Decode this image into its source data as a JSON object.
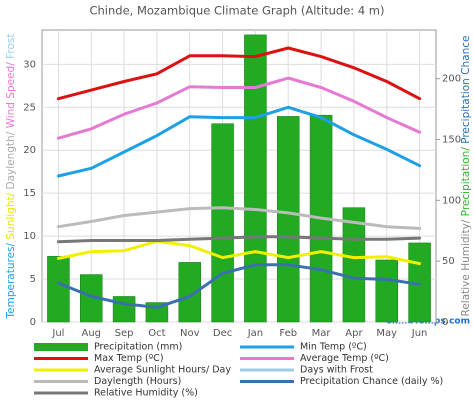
{
  "chart_data": {
    "type": "combo",
    "title": "Chinde, Mozambique Climate Graph (Altitude: 4 m)",
    "ylabel": [
      {
        "text": "Temperatures/ ",
        "color": "#1ea0e6"
      },
      {
        "text": "Sunlight/ ",
        "color": "#e6e600"
      },
      {
        "text": "Daylength/ ",
        "color": "#aaaaaa"
      },
      {
        "text": "Wind Speed/ ",
        "color": "#e67ad2"
      },
      {
        "text": "Frost",
        "color": "#9ecbe6"
      }
    ],
    "y2label": [
      {
        "text": "Relative Humidity/ ",
        "color": "#888888"
      },
      {
        "text": "Precipitation/ ",
        "color": "#2db32d"
      },
      {
        "text": "Precipitation Chance",
        "color": "#2a6fb5"
      }
    ],
    "watermark": "ClimaTemps.com",
    "categories": [
      "Jul",
      "Aug",
      "Sep",
      "Oct",
      "Nov",
      "Dec",
      "Jan",
      "Feb",
      "Mar",
      "Apr",
      "May",
      "Jun"
    ],
    "ylim": [
      0,
      34
    ],
    "yticks": [
      0,
      5,
      10,
      15,
      20,
      25,
      30
    ],
    "y2lim": [
      0,
      240
    ],
    "y2ticks": [
      0,
      50,
      100,
      150,
      200
    ],
    "grid": true,
    "series": [
      {
        "name": "Precipitation (mm)",
        "color": "#22aa22",
        "style": "bar",
        "axis": "y2",
        "values": [
          54,
          39,
          21,
          16,
          49,
          163,
          236,
          169,
          170,
          94,
          51,
          65
        ]
      },
      {
        "name": "Min Temp (ºC)",
        "color": "#1ea0e6",
        "style": "line",
        "values": [
          17,
          17.9,
          19.8,
          21.7,
          23.9,
          23.8,
          23.8,
          25,
          23.8,
          21.8,
          20.1,
          18.2
        ]
      },
      {
        "name": "Max Temp (ºC)",
        "color": "#dd1111",
        "style": "line",
        "values": [
          26,
          27,
          28,
          28.9,
          31,
          31,
          30.9,
          31.9,
          30.9,
          29.6,
          28,
          26
        ]
      },
      {
        "name": "Average Temp (ºC)",
        "color": "#e67ad2",
        "style": "line",
        "values": [
          21.4,
          22.5,
          24.2,
          25.5,
          27.4,
          27.3,
          27.3,
          28.4,
          27.3,
          25.7,
          23.8,
          22.1
        ]
      },
      {
        "name": "Average Sunlight Hours/ Day",
        "color": "#f0f000",
        "style": "line",
        "values": [
          7.4,
          8.2,
          8.3,
          9.4,
          8.9,
          7.5,
          8.2,
          7.5,
          8.2,
          7.5,
          7.6,
          6.8
        ]
      },
      {
        "name": "Days with Frost",
        "color": "#9ecbe6",
        "style": "line",
        "values": [
          null,
          null,
          null,
          null,
          null,
          null,
          null,
          null,
          null,
          null,
          null,
          null
        ]
      },
      {
        "name": "Daylength (Hours)",
        "color": "#bbbbbb",
        "style": "line",
        "values": [
          11.1,
          11.7,
          12.4,
          12.8,
          13.2,
          13.3,
          13.1,
          12.7,
          12.1,
          11.6,
          11.1,
          10.9
        ]
      },
      {
        "name": "Precipitation Chance (daily %)",
        "color": "#3a6fb0",
        "style": "line",
        "axis": "y2",
        "values": [
          32,
          21,
          15,
          12,
          21,
          40,
          47,
          47,
          43,
          36,
          35,
          31
        ]
      },
      {
        "name": "Relative Humidity (%)",
        "color": "#777777",
        "style": "line",
        "axis": "y2",
        "values": [
          66,
          67,
          67,
          67,
          68,
          69,
          70,
          70,
          69,
          68,
          68,
          69
        ]
      }
    ]
  }
}
